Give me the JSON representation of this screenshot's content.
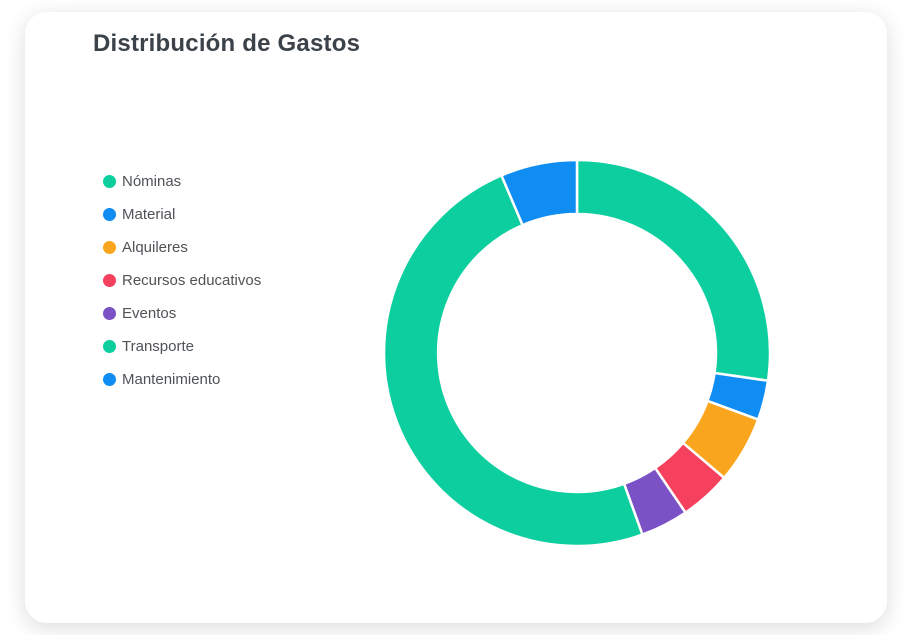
{
  "chart_data": {
    "type": "pie",
    "subtype": "doughnut",
    "title": "Distribución de Gastos",
    "categories": [
      "Nóminas",
      "Material",
      "Alquileres",
      "Recursos educativos",
      "Eventos",
      "Transporte",
      "Mantenimiento"
    ],
    "values_percent": [
      27.3,
      3.3,
      5.6,
      4.3,
      4.0,
      49.1,
      6.4
    ],
    "colors": [
      "#0cce9e",
      "#0f8df2",
      "#f9a61e",
      "#f5405e",
      "#7a52c5",
      "#0cce9e",
      "#0f8df2"
    ],
    "legend_position": "left",
    "start_angle_deg": 0,
    "direction": "clockwise",
    "cutout_ratio": 0.72,
    "segment_border_color": "#ffffff",
    "segment_border_width": 2.5,
    "title_color": "#3c4249",
    "legend_text_color": "#4f5357"
  }
}
